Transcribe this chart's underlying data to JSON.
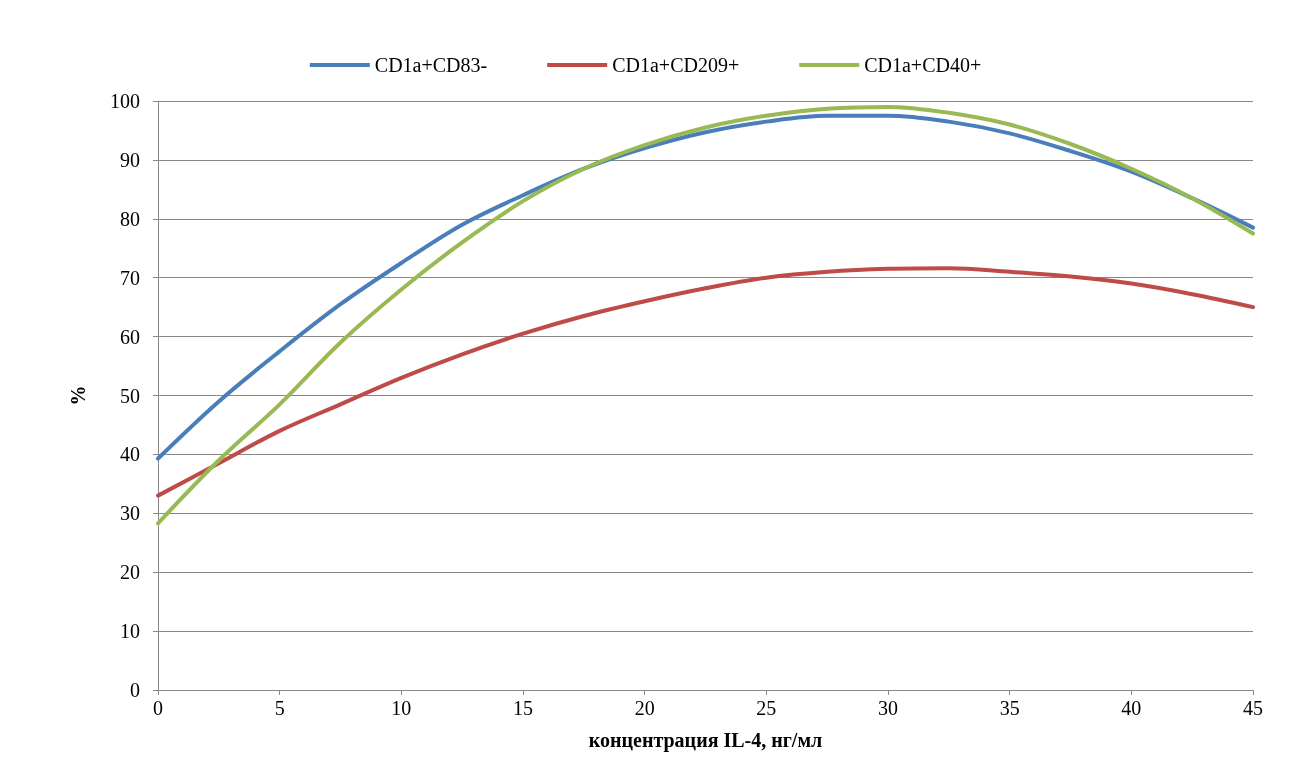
{
  "chart_data": {
    "type": "line",
    "xlabel": "концентрация IL-4, нг/мл",
    "ylabel": "%",
    "x": [
      0,
      2.5,
      5,
      7.5,
      10,
      12.5,
      15,
      17.5,
      20,
      22.5,
      25,
      27.5,
      30,
      32.5,
      35,
      37.5,
      40,
      42.5,
      45
    ],
    "series": [
      {
        "name": "CD1a+CD83-",
        "color": "#4a7ebb",
        "values": [
          39.3,
          49,
          57.5,
          65.5,
          72.5,
          79,
          84,
          88.5,
          92,
          94.7,
          96.5,
          97.5,
          97.5,
          96.5,
          94.5,
          91.5,
          88,
          83.5,
          78.5
        ]
      },
      {
        "name": "CD1a+CD209+",
        "color": "#be4b48",
        "values": [
          33,
          38.5,
          44,
          48.5,
          53,
          57,
          60.5,
          63.5,
          66,
          68.2,
          70,
          71,
          71.5,
          71.6,
          71,
          70.2,
          69,
          67.2,
          65
        ]
      },
      {
        "name": "CD1a+CD40+",
        "color": "#98b954",
        "values": [
          28.3,
          39,
          48.5,
          59,
          68,
          76,
          83,
          88.5,
          92.5,
          95.5,
          97.5,
          98.7,
          99,
          98,
          96,
          92.7,
          88.5,
          83.5,
          77.5
        ]
      }
    ],
    "xlim": [
      0,
      45
    ],
    "xticks": [
      0,
      5,
      10,
      15,
      20,
      25,
      30,
      35,
      40,
      45
    ],
    "ylim": [
      0,
      100
    ],
    "yticks": [
      0,
      10,
      20,
      30,
      40,
      50,
      60,
      70,
      80,
      90,
      100
    ],
    "grid": "y",
    "legend": "top",
    "marker": "none",
    "line_style": "solid"
  }
}
